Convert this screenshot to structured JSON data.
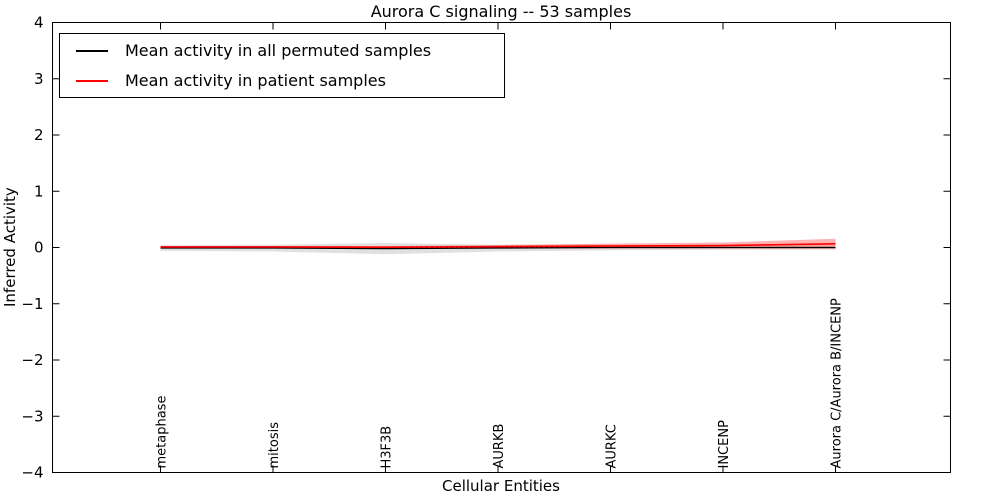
{
  "chart_data": {
    "type": "line",
    "title": "Aurora C signaling -- 53 samples",
    "xlabel": "Cellular Entities",
    "ylabel": "Inferred Activity",
    "ylim": [
      -4,
      4
    ],
    "yticks": [
      4,
      3,
      2,
      1,
      0,
      -1,
      -2,
      -3,
      -4
    ],
    "ytick_labels": [
      "4",
      "3",
      "2",
      "1",
      "0",
      "−1",
      "−2",
      "−3",
      "−4"
    ],
    "categories": [
      "metaphase",
      "mitosis",
      "H3F3B",
      "AURKB",
      "AURKC",
      "INCENP",
      "Aurora C/Aurora B/INCENP"
    ],
    "grid": false,
    "zero_line": {
      "value": 0,
      "style": "dashed",
      "color": "#000000"
    },
    "series": [
      {
        "name": "Mean activity in all permuted samples",
        "color": "#000000",
        "band_color": "#999999",
        "band_opacity": 0.3,
        "values": [
          -0.01,
          -0.01,
          -0.02,
          -0.01,
          0.0,
          0.0,
          0.0
        ],
        "band": [
          0.05,
          0.06,
          0.1,
          0.06,
          0.05,
          0.04,
          0.04
        ]
      },
      {
        "name": "Mean activity in patient samples",
        "color": "#ff0000",
        "band_color": "#ff0000",
        "band_opacity": 0.3,
        "values": [
          0.01,
          0.01,
          0.005,
          0.015,
          0.025,
          0.035,
          0.065
        ],
        "band": [
          0.015,
          0.015,
          0.02,
          0.03,
          0.045,
          0.055,
          0.09
        ]
      }
    ],
    "legend": {
      "position": "upper-left"
    }
  }
}
